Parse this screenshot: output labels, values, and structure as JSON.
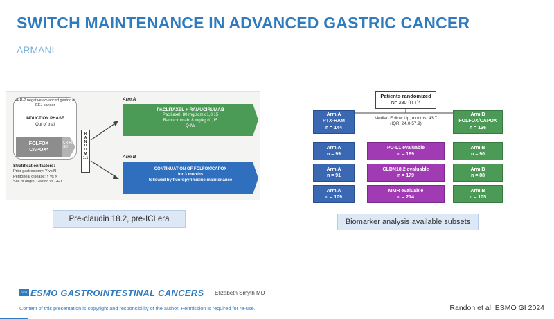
{
  "slide": {
    "title": "SWITCH MAINTENANCE IN ADVANCED GASTRIC CANCER",
    "subtitle": "ARMANI"
  },
  "left_figure": {
    "population": "HER-2 negative advanced gastric or GEJ cancer",
    "induction_title": "INDUCTION PHASE",
    "induction_note": "Out of trial",
    "induction_regimen_1": "FOLFOX",
    "induction_regimen_2": "CAPOX*",
    "induction_arrow_text": "CR PR SD",
    "randomization_letters": [
      "R",
      "A",
      "N",
      "D",
      "O",
      "M",
      "1:1"
    ],
    "stratification_title": "Stratification factors:",
    "stratification_items": [
      "Prior gastrectomy: Y vs N",
      "Peritoneal disease: Y vs N",
      "Site of origin: Gastric vs GEJ"
    ],
    "arm_a": {
      "label": "Arm A",
      "heading": "PACLITAXEL + RAMUCIRUMAB",
      "line1": "Paclitaxel: 80 mg/sqm d1,8,15",
      "line2": "Ramucirumab: 8 mg/kg d1,15",
      "line3": "Q4W"
    },
    "arm_b": {
      "label": "Arm B",
      "heading": "CONTINUATION OF FOLFOX/CAPOX",
      "line1": "for 3 months",
      "line2": "followed by fluoropyrimidine maintenance"
    },
    "caption": "Pre-claudin 18.2, pre-ICI era"
  },
  "right_figure": {
    "randomized_title": "Patients randomized",
    "randomized_n": "N= 280 (ITT)*",
    "arm_a_top": [
      "Arm A",
      "PTX-RAM",
      "n = 144"
    ],
    "arm_b_top": [
      "Arm B",
      "FOLFOX/CAPOX",
      "n = 136"
    ],
    "median_follow_up": "Median Follow Up, months: 43.7 (IQR: 24.0-57.9)",
    "rows": [
      {
        "arm_a": [
          "Arm A",
          "n = 99"
        ],
        "biomarker": [
          "PD-L1 evaluable",
          "n = 189"
        ],
        "arm_b": [
          "Arm B",
          "n = 90"
        ]
      },
      {
        "arm_a": [
          "Arm A",
          "n = 91"
        ],
        "biomarker": [
          "CLDN18.2 evaluable",
          "n = 179"
        ],
        "arm_b": [
          "Arm B",
          "n = 88"
        ]
      },
      {
        "arm_a": [
          "Arm A",
          "n = 109"
        ],
        "biomarker": [
          "MMR evaluable",
          "n = 214"
        ],
        "arm_b": [
          "Arm B",
          "n = 105"
        ]
      }
    ],
    "caption": "Biomarker analysis available subsets"
  },
  "footer": {
    "logo_badge": "2024",
    "logo_text": "ESMO GASTROINTESTINAL CANCERS",
    "presenter": "Elizabeth Smyth MD",
    "copyright": "Content of this presentation is copyright and responsibility of the author. Permission is required for re-use.",
    "citation": "Randon et al, ESMO GI 2024"
  },
  "colors": {
    "title_blue": "#2f7bbf",
    "arm_a_green": "#4b9b56",
    "arm_b_blue": "#3a68b2",
    "biomarker_purple": "#a03bb4",
    "caption_fill": "#dce8f6"
  }
}
